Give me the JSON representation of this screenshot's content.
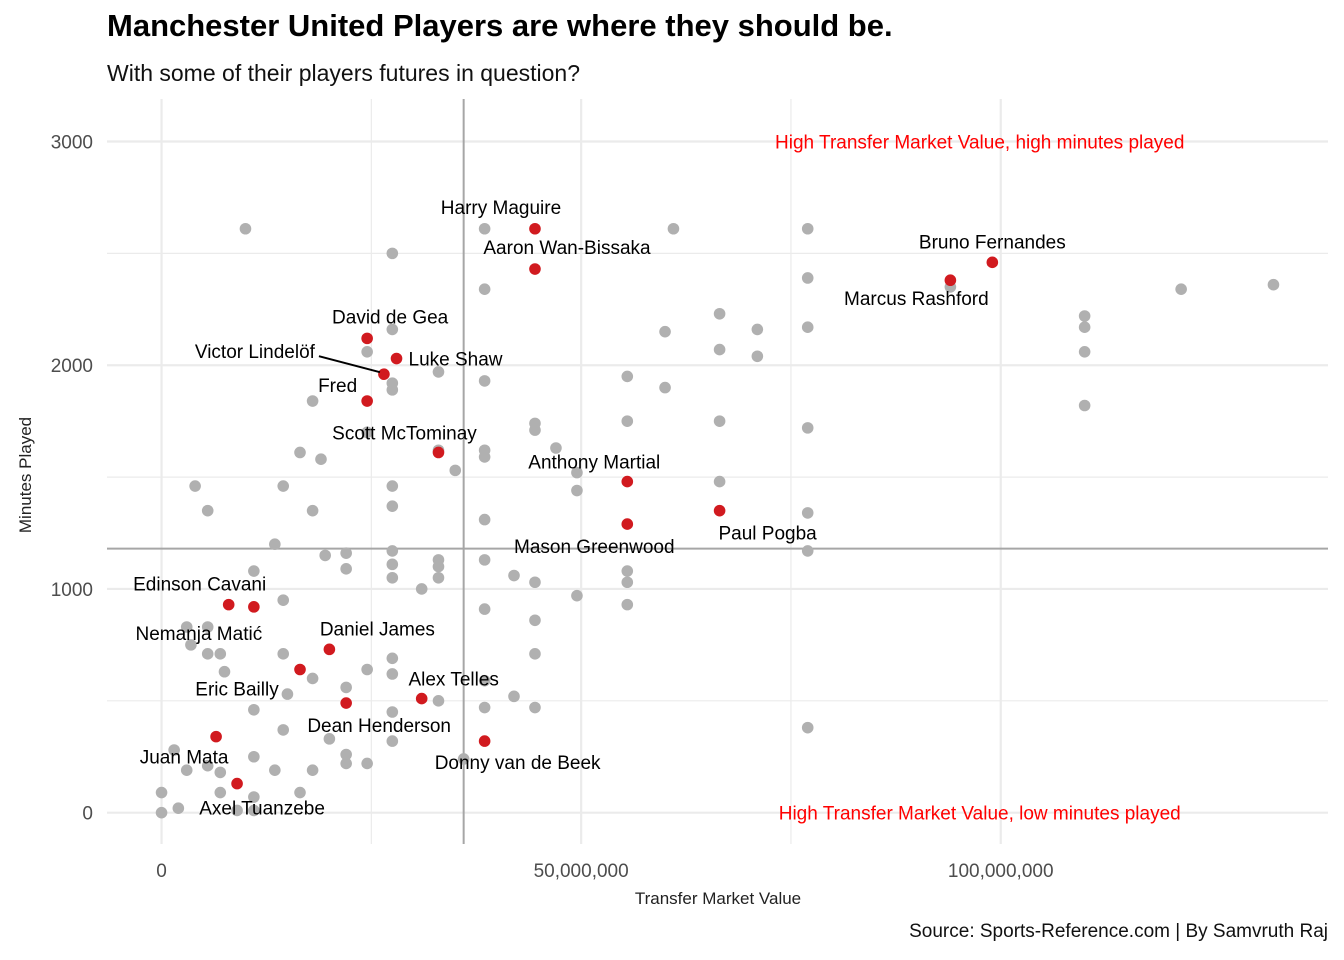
{
  "chart_data": {
    "type": "scatter",
    "title": "Manchester United Players are where they should be.",
    "subtitle": "With some of their players futures in question?",
    "caption": "Source: Sports-Reference.com | By Samvruth Raj",
    "xlabel": "Transfer Market Value",
    "ylabel": "Minutes Played",
    "xlim": [
      -6500000,
      139000000
    ],
    "ylim": [
      -140,
      3190
    ],
    "x_ticks": [
      0,
      50000000,
      100000000
    ],
    "x_tick_labels": [
      "0",
      "50,000,000",
      "100,000,000"
    ],
    "y_ticks": [
      0,
      1000,
      2000,
      3000
    ],
    "y_tick_labels": [
      "0",
      "1000",
      "2000",
      "3000"
    ],
    "grid": true,
    "reference_lines": {
      "x": 36000000,
      "y": 1180
    },
    "quadrant_labels": [
      {
        "text": "High Transfer Market Value, high minutes played",
        "x": 97500000,
        "y": 3000,
        "color": "#ff0000"
      },
      {
        "text": "High Transfer Market Value, low minutes played",
        "x": 97500000,
        "y": 0,
        "color": "#ff0000"
      }
    ],
    "colors": {
      "highlight": "#d11a1f",
      "other": "#b0b0b0",
      "reference_line": "#a6a6a6",
      "grid": "#ebebeb"
    },
    "highlighted": [
      {
        "name": "Harry Maguire",
        "x": 44500000,
        "y": 2610
      },
      {
        "name": "Aaron Wan-Bissaka",
        "x": 44500000,
        "y": 2430
      },
      {
        "name": "Bruno Fernandes",
        "x": 99000000,
        "y": 2460
      },
      {
        "name": "Marcus Rashford",
        "x": 94000000,
        "y": 2380
      },
      {
        "name": "David de Gea",
        "x": 24500000,
        "y": 2120
      },
      {
        "name": "Luke Shaw",
        "x": 28000000,
        "y": 2030
      },
      {
        "name": "Victor Lindelöf",
        "x": 26500000,
        "y": 1960
      },
      {
        "name": "Fred",
        "x": 24500000,
        "y": 1840
      },
      {
        "name": "Scott McTominay",
        "x": 33000000,
        "y": 1610
      },
      {
        "name": "Anthony Martial",
        "x": 55500000,
        "y": 1480
      },
      {
        "name": "Paul Pogba",
        "x": 66500000,
        "y": 1350
      },
      {
        "name": "Mason Greenwood",
        "x": 55500000,
        "y": 1290
      },
      {
        "name": "Edinson Cavani",
        "x": 8000000,
        "y": 930
      },
      {
        "name": "Nemanja Matić",
        "x": 11000000,
        "y": 920
      },
      {
        "name": "Daniel James",
        "x": 20000000,
        "y": 730
      },
      {
        "name": "Eric Bailly",
        "x": 16500000,
        "y": 640
      },
      {
        "name": "Alex Telles",
        "x": 31000000,
        "y": 510
      },
      {
        "name": "Dean Henderson",
        "x": 22000000,
        "y": 490
      },
      {
        "name": "Donny van de Beek",
        "x": 38500000,
        "y": 320
      },
      {
        "name": "Juan Mata",
        "x": 6500000,
        "y": 340
      },
      {
        "name": "Axel Tuanzebe",
        "x": 9000000,
        "y": 130
      }
    ],
    "others": [
      [
        10000000,
        2610
      ],
      [
        38500000,
        2610
      ],
      [
        61000000,
        2610
      ],
      [
        77000000,
        2610
      ],
      [
        27500000,
        2500
      ],
      [
        38500000,
        2340
      ],
      [
        77000000,
        2390
      ],
      [
        94000000,
        2350
      ],
      [
        132500000,
        2360
      ],
      [
        121500000,
        2340
      ],
      [
        66500000,
        2230
      ],
      [
        110000000,
        2220
      ],
      [
        110000000,
        2170
      ],
      [
        77000000,
        2170
      ],
      [
        71000000,
        2160
      ],
      [
        60000000,
        2150
      ],
      [
        27500000,
        2160
      ],
      [
        66500000,
        2070
      ],
      [
        71000000,
        2040
      ],
      [
        110000000,
        2060
      ],
      [
        24500000,
        2060
      ],
      [
        33000000,
        1970
      ],
      [
        55500000,
        1950
      ],
      [
        38500000,
        1930
      ],
      [
        27500000,
        1920
      ],
      [
        27500000,
        1890
      ],
      [
        60000000,
        1900
      ],
      [
        18000000,
        1840
      ],
      [
        110000000,
        1820
      ],
      [
        55500000,
        1750
      ],
      [
        66500000,
        1750
      ],
      [
        44500000,
        1740
      ],
      [
        44500000,
        1710
      ],
      [
        77000000,
        1720
      ],
      [
        24500000,
        1700
      ],
      [
        38500000,
        1620
      ],
      [
        33000000,
        1620
      ],
      [
        47000000,
        1630
      ],
      [
        16500000,
        1610
      ],
      [
        19000000,
        1580
      ],
      [
        38500000,
        1590
      ],
      [
        35000000,
        1530
      ],
      [
        49500000,
        1520
      ],
      [
        4000000,
        1460
      ],
      [
        14500000,
        1460
      ],
      [
        27500000,
        1460
      ],
      [
        66500000,
        1480
      ],
      [
        49500000,
        1440
      ],
      [
        27500000,
        1370
      ],
      [
        5500000,
        1350
      ],
      [
        18000000,
        1350
      ],
      [
        77000000,
        1340
      ],
      [
        38500000,
        1310
      ],
      [
        13500000,
        1200
      ],
      [
        77000000,
        1170
      ],
      [
        27500000,
        1170
      ],
      [
        22000000,
        1160
      ],
      [
        19500000,
        1150
      ],
      [
        33000000,
        1130
      ],
      [
        38500000,
        1130
      ],
      [
        11000000,
        1080
      ],
      [
        22000000,
        1090
      ],
      [
        27500000,
        1110
      ],
      [
        33000000,
        1100
      ],
      [
        55500000,
        1080
      ],
      [
        42000000,
        1060
      ],
      [
        27500000,
        1050
      ],
      [
        33000000,
        1050
      ],
      [
        44500000,
        1030
      ],
      [
        55500000,
        1030
      ],
      [
        31000000,
        1000
      ],
      [
        49500000,
        970
      ],
      [
        14500000,
        950
      ],
      [
        55500000,
        930
      ],
      [
        38500000,
        910
      ],
      [
        44500000,
        860
      ],
      [
        3000000,
        830
      ],
      [
        5500000,
        830
      ],
      [
        3500000,
        750
      ],
      [
        5500000,
        710
      ],
      [
        7000000,
        710
      ],
      [
        14500000,
        710
      ],
      [
        27500000,
        690
      ],
      [
        44500000,
        710
      ],
      [
        24500000,
        640
      ],
      [
        27500000,
        620
      ],
      [
        7500000,
        630
      ],
      [
        18000000,
        600
      ],
      [
        22000000,
        560
      ],
      [
        15000000,
        530
      ],
      [
        38500000,
        590
      ],
      [
        42000000,
        520
      ],
      [
        33000000,
        500
      ],
      [
        11000000,
        460
      ],
      [
        38500000,
        470
      ],
      [
        44500000,
        470
      ],
      [
        27500000,
        450
      ],
      [
        14500000,
        370
      ],
      [
        20000000,
        330
      ],
      [
        27500000,
        320
      ],
      [
        77000000,
        380
      ],
      [
        1500000,
        280
      ],
      [
        11000000,
        250
      ],
      [
        22000000,
        260
      ],
      [
        22000000,
        220
      ],
      [
        24500000,
        220
      ],
      [
        36000000,
        240
      ],
      [
        5500000,
        210
      ],
      [
        3000000,
        190
      ],
      [
        7000000,
        180
      ],
      [
        13500000,
        190
      ],
      [
        18000000,
        190
      ],
      [
        0,
        90
      ],
      [
        7000000,
        90
      ],
      [
        11000000,
        70
      ],
      [
        16500000,
        90
      ],
      [
        2000000,
        20
      ],
      [
        9000000,
        10
      ],
      [
        11000000,
        10
      ],
      [
        0,
        0
      ]
    ]
  }
}
